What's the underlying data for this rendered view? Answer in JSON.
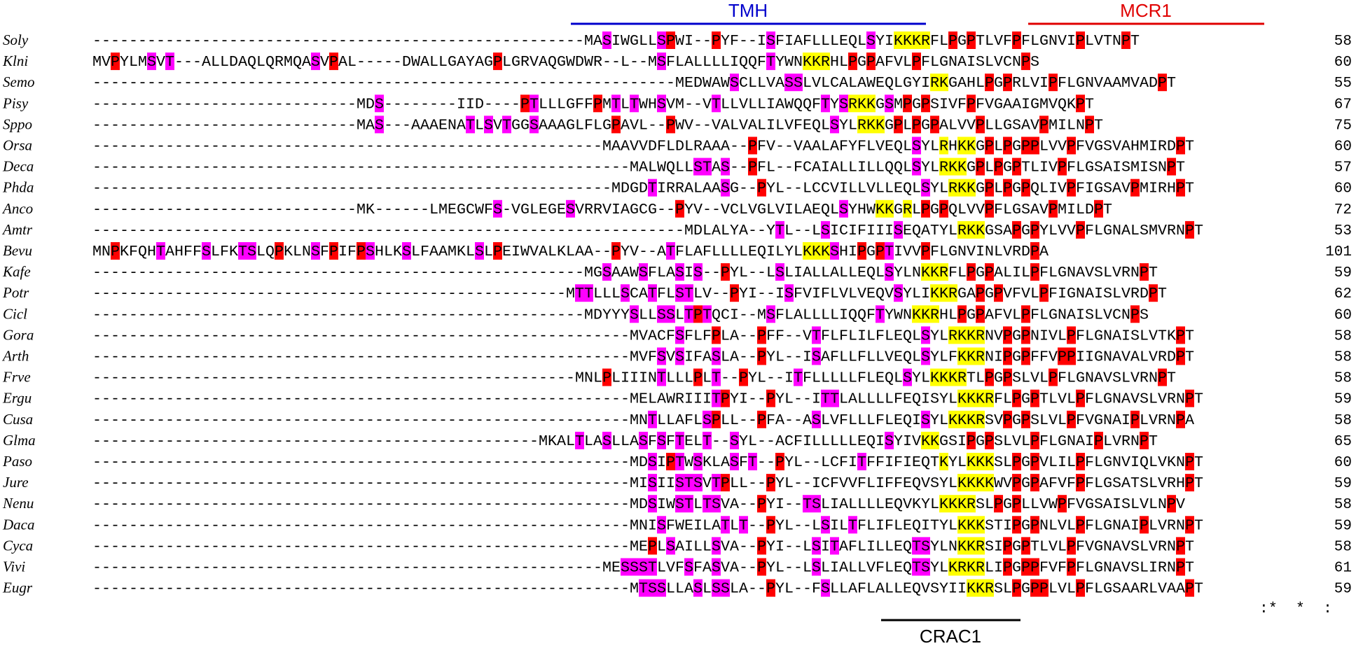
{
  "figure": {
    "labels": {
      "tmh": {
        "text": "TMH",
        "color": "#0000CC"
      },
      "mcr1": {
        "text": "MCR1",
        "color": "#E00000"
      },
      "crac1": {
        "text": "CRAC1",
        "color": "#000000"
      }
    },
    "colors": {
      "tmh_block": "#0000CC",
      "p": "#FF0000",
      "st": "#FF00FF",
      "lv": "#00DD00",
      "y": "#00E5EE",
      "krk": "#FFFF00"
    },
    "conservation": "                                                                                                                                :*  *  :        ***  :  *::*  .  ::    *",
    "alignment": [
      {
        "species": "Soly",
        "seq": "------------------------------------------------------MASIWGLLSPWI--PYF--ISFIAFLLLEQLSYIKKKRFLPGPTLVFPFLGNVIPLVTNPT",
        "end": "58"
      },
      {
        "species": "Klni",
        "seq": "MVPYLMSVT---ALLDAQLQRMQASVPAL-----DWALLGAYAGPLGRVAQGWDWR--L--MSFLALLLLIQQFTYWNKKRHLPGPAFVLPFLGNAISLVCNPS",
        "end": "60"
      },
      {
        "species": "Semo",
        "seq": "----------------------------------------------------------------MEDWAWSCLLVASSLVLCALAWEQLGYIRKGAHLPGPRLVIPFLGNVAAMVADPT",
        "end": "55"
      },
      {
        "species": "Pisy",
        "seq": "-----------------------------MDS--------IID----PTLLLGFFPMTLTWHSVM--VTLLVLLIAWQQFTYSRKKGSMPGPSIVFPFVGAAIGMVQKPT",
        "end": "67"
      },
      {
        "species": "Sppo",
        "seq": "-----------------------------MAS---AAAENATLSVTGGSAAAGLFLGPAVL--PWV--VALVALILVFEQLSYLRKKGPLPGPALVVPLLGSAVPMILNPT",
        "end": "75"
      },
      {
        "species": "Orsa",
        "seq": "--------------------------------------------------------MAAVVDFLDLRAAA--PFV--VAALAFYFLVEQLSYLRHKKGPLPGPPLVVPFVGSVAHMIRDPT",
        "end": "60"
      },
      {
        "species": "Deca",
        "seq": "-----------------------------------------------------------MALWQLLSTAS--PFL--FCAIALLILLQQLSYLRKKGPLPGPTLIVPFLGSAISMISNPT",
        "end": "57"
      },
      {
        "species": "Phda",
        "seq": "---------------------------------------------------------MDGDTIRRALAASG--PYL--LCCVILLVLLEQLSYLRKKGPLPGPQLIVPFIGSAVPMIRHPT",
        "end": "60"
      },
      {
        "species": "Anco",
        "seq": "-----------------------------MK------LMEGCWFS-VGLEGESVRRVIAGCG--PYV--VCLVGLVILAEQLSYHWKKGRLPGPQLVVPFLGSAVPMILDPT",
        "end": "72"
      },
      {
        "species": "Amtr",
        "seq": "-----------------------------------------------------------------MDLALYA--YTL--LSICIFIIISEQATYLRKKGSAPGPYLVVPFLGNALSMVRNPT",
        "end": "53"
      },
      {
        "species": "Bevu",
        "seq": "MNPKFQHTAHFFSLFKTSLQPKLNSFPIFPSHLKSLFAAMKLSLPEIWVALKLAA--PYV--ATFLAFLLLLEQILYLKKKSHIPGPTIVVPFLGNVINLVRDPA",
        "end": "101"
      },
      {
        "species": "Kafe",
        "seq": "------------------------------------------------------MGSAAWSFLASIS--PYL--LSLIALLALLEQLSYLNKKRFLPGPALILPFLGNAVSLVRNPT",
        "end": "59"
      },
      {
        "species": "Potr",
        "seq": "----------------------------------------------------MTTLLLSCATFLSTLV--PYI--ISFVIFLVLVEQVSYLIKKRGAPGPVFVLPFIGNAISLVRDPT",
        "end": "62"
      },
      {
        "species": "Cicl",
        "seq": "------------------------------------------------------MDYYYSLLSSLTPTQCI--MSFLALLLLIQQFTYWNKKRHLPGPAFVLPFLGNAISLVCNPS",
        "end": "60"
      },
      {
        "species": "Gora",
        "seq": "-----------------------------------------------------------MVACFSFLFPLA--PFF--VTFLFLILFLEQLSYLRKKRNVPGPNIVLPFLGNAISLVTKPT",
        "end": "58"
      },
      {
        "species": "Arth",
        "seq": "-----------------------------------------------------------MVFSVSIFASLA--PYL--ISAFLLFLLVEQLSYLFKKRNIPGPFFVPPIIGNAVALVRDPT",
        "end": "58"
      },
      {
        "species": "Frve",
        "seq": "-----------------------------------------------------MNLPLIIINTLLLPLT--PYL--ITFLLLLLFLEQLSYLKKKRTLPGPSLVLPFLGNAVSLVRNPT",
        "end": "58"
      },
      {
        "species": "Ergu",
        "seq": "-----------------------------------------------------------MELAWRIIITPYI--PYL--ITTLALLLLFEQISYLKKKRFLPGPTLVLPFLGNAVSLVRNPT",
        "end": "59"
      },
      {
        "species": "Cusa",
        "seq": "-----------------------------------------------------------MNTLLAFLSPLL--PFA--ASLVFLLLFLEQISYLKKKRSVPGPSLVLPFVGNAIPLVRNPA",
        "end": "58"
      },
      {
        "species": "Glma",
        "seq": "-------------------------------------------------MKALTLASLLASFSFTELT--SYL--ACFILLLLLEQISYIVKKGSIPGPSLVLPFLGNAIPLVRNPT",
        "end": "65"
      },
      {
        "species": "Paso",
        "seq": "-----------------------------------------------------------MDSIPTWSKLASFT--PYL--LCFITFFIFIEQTKYLKKKSLPGPVLILPFLGNVIQLVKNPT",
        "end": "60"
      },
      {
        "species": "Jure",
        "seq": "-----------------------------------------------------------MISIISTSVTPLL--PYL--ICFVVFLIFFEQVSYLKKKKWVPGPAFVFPFLGSATSLVRHPT",
        "end": "59"
      },
      {
        "species": "Nenu",
        "seq": "-----------------------------------------------------------MDSIWSTLTSVA--PYI--TSLIALLLLEQVKYLKKKRSLPGPLLVWPFVGSAISLVLNPV",
        "end": "58"
      },
      {
        "species": "Daca",
        "seq": "-----------------------------------------------------------MNISFWEILATLT--PYL--LSILTFLIFLEQITYLKKKSTIPGPNLVLPFLGNAIPLVRNPT",
        "end": "59"
      },
      {
        "species": "Cyca",
        "seq": "-----------------------------------------------------------MEPLSAILLSVA--PYI--LSITAFLILLEQTSYLNKKRSIPGPTLVLPFVGNAVSLVRNPT",
        "end": "58"
      },
      {
        "species": "Vivi",
        "seq": "--------------------------------------------------------MESSSTLVFSFASVA--PYL--LSLIALLVFLEQTSYLKRKRLIPGPPFVFPFLGNAVSLIRNPT",
        "end": "61"
      },
      {
        "species": "Eugr",
        "seq": "-----------------------------------------------------------MTSSLLASLSSLA--PYL--FSLLAFLALLEQVSYIIKKRSLPGPPLVLPFLGSAARLVAAPT",
        "end": "59"
      }
    ]
  }
}
